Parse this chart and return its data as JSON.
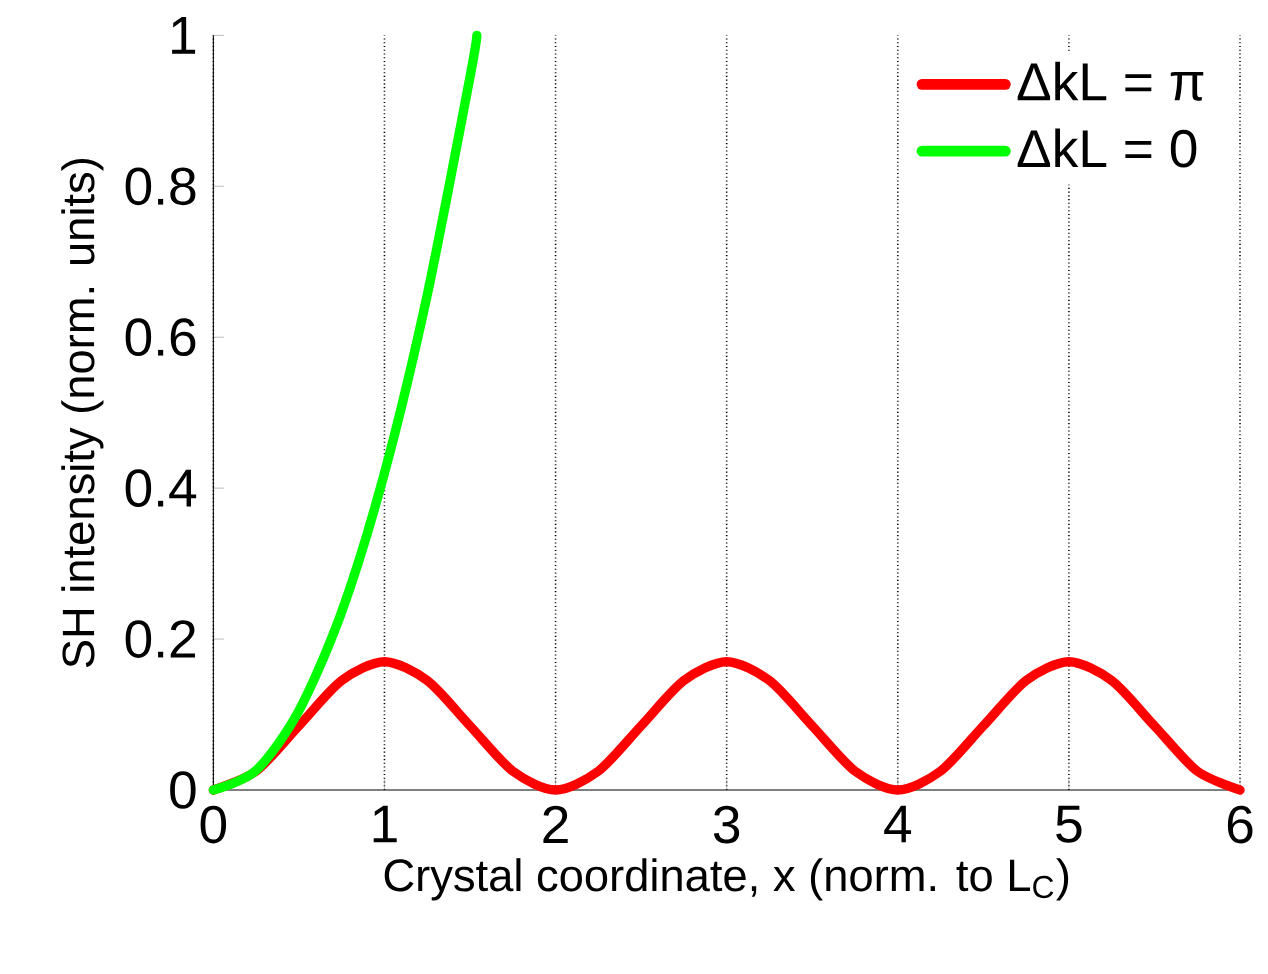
{
  "chart_data": {
    "type": "line",
    "xlabel": "Crystal coordinate, x (norm. to L$_{C}$)",
    "ylabel": "SH intensity (norm. units)",
    "xlim": [
      0,
      6
    ],
    "ylim": [
      0,
      1
    ],
    "xticks": [
      0,
      1,
      2,
      3,
      4,
      5,
      6
    ],
    "yticks": [
      0,
      0.2,
      0.4,
      0.6,
      0.8,
      1
    ],
    "grid": "x",
    "legend": "top right",
    "line_style": "solid",
    "marker": "none",
    "series": [
      {
        "name": "ΔkL = π",
        "color": "#ff0000",
        "x": [
          0,
          0.25,
          0.5,
          0.75,
          1,
          1.25,
          1.5,
          1.75,
          2,
          2.25,
          2.5,
          2.75,
          3,
          3.25,
          3.5,
          3.75,
          4,
          4.25,
          4.5,
          4.75,
          5,
          5.25,
          5.5,
          5.75,
          6
        ],
        "values": [
          0,
          0.025,
          0.085,
          0.145,
          0.17,
          0.145,
          0.085,
          0.025,
          0,
          0.025,
          0.085,
          0.145,
          0.17,
          0.145,
          0.085,
          0.025,
          0,
          0.025,
          0.085,
          0.145,
          0.17,
          0.145,
          0.085,
          0.025,
          0
        ]
      },
      {
        "name": "ΔkL = 0",
        "color": "#00ff00",
        "x": [
          0,
          0.25,
          0.5,
          0.75,
          1,
          1.25,
          1.5,
          1.54
        ],
        "values": [
          0,
          0.026,
          0.105,
          0.236,
          0.42,
          0.656,
          0.945,
          1.0
        ]
      }
    ]
  }
}
